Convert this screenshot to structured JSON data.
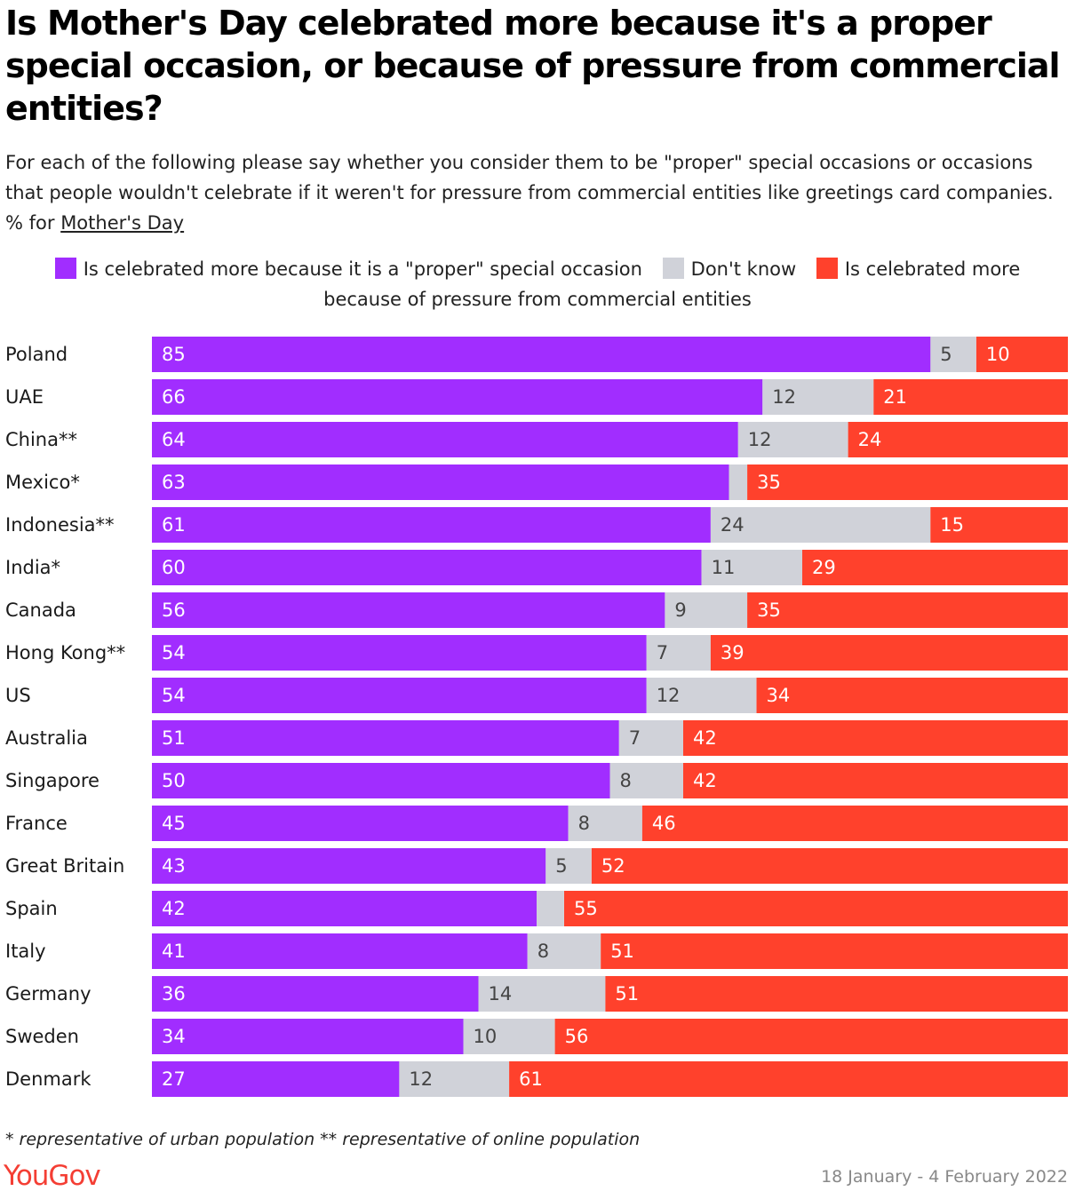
{
  "title": "Is Mother's Day celebrated more because it's a proper special occasion, or because of pressure from commercial entities?",
  "subtitle_prefix": "For each of the following please say whether you consider them to be \"proper\" special occasions or occasions that people wouldn't celebrate if it weren't for pressure from commercial entities like greetings card companies. % for ",
  "subtitle_link": "Mother's Day",
  "footnote": "* representative of urban population ** representative of online population",
  "brand": "YouGov",
  "date_range": "18 January - 4 February 2022",
  "colors": {
    "proper": "#a12dff",
    "dont_know": "#d0d2d9",
    "pressure": "#ff412c"
  },
  "chart_data": {
    "type": "bar",
    "orientation": "horizontal",
    "stacked": true,
    "legend_position": "top",
    "categories": [
      "Poland",
      "UAE",
      "China**",
      "Mexico*",
      "Indonesia**",
      "India*",
      "Canada",
      "Hong Kong**",
      "US",
      "Australia",
      "Singapore",
      "France",
      "Great Britain",
      "Spain",
      "Italy",
      "Germany",
      "Sweden",
      "Denmark"
    ],
    "series": [
      {
        "name": "Is celebrated more because it is a \"proper\" special occasion",
        "key": "proper",
        "values": [
          85,
          66,
          64,
          63,
          61,
          60,
          56,
          54,
          54,
          51,
          50,
          45,
          43,
          42,
          41,
          36,
          34,
          27
        ]
      },
      {
        "name": "Don't know",
        "key": "dont_know",
        "values": [
          5,
          12,
          12,
          2,
          24,
          11,
          9,
          7,
          12,
          7,
          8,
          8,
          5,
          3,
          8,
          14,
          10,
          12
        ],
        "labels": [
          "5",
          "12",
          "12",
          "",
          "24",
          "11",
          "9",
          "7",
          "12",
          "7",
          "8",
          "8",
          "5",
          "",
          "8",
          "14",
          "10",
          "12"
        ]
      },
      {
        "name": "Is celebrated more because of pressure from commercial entities",
        "key": "pressure",
        "values": [
          10,
          21,
          24,
          35,
          15,
          29,
          35,
          39,
          34,
          42,
          42,
          46,
          52,
          55,
          51,
          51,
          56,
          61
        ]
      }
    ],
    "unit": "%"
  }
}
